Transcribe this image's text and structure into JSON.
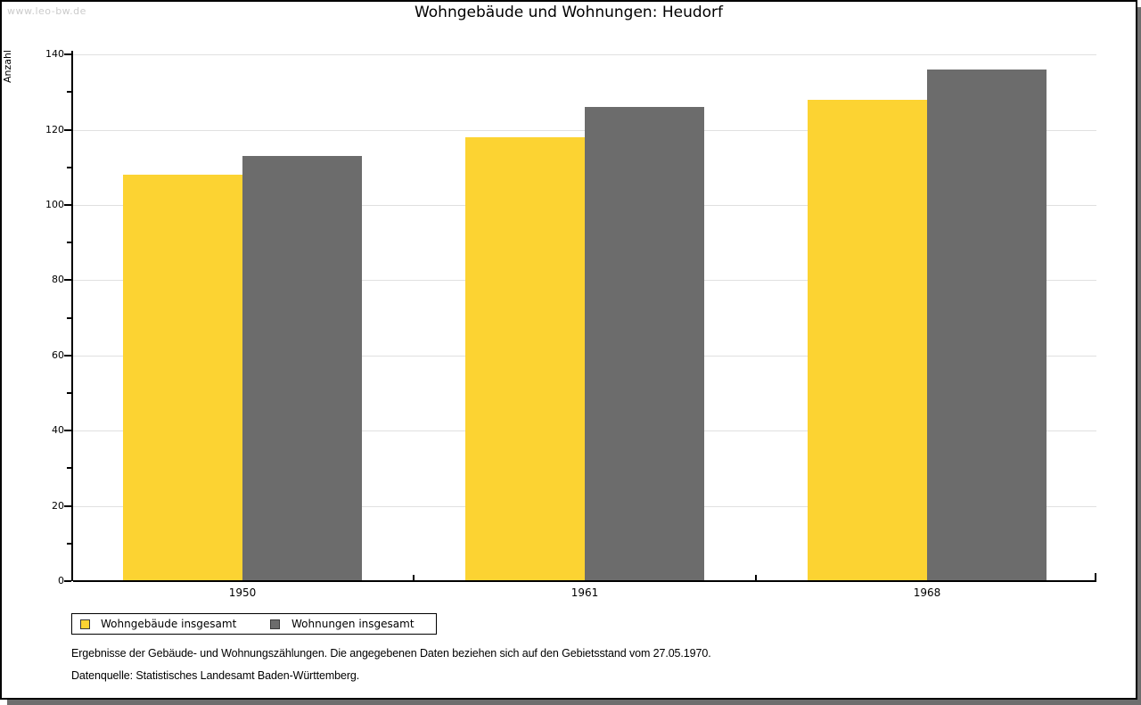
{
  "watermark": "www.leo-bw.de",
  "title": "Wohngebäude und Wohnungen: Heudorf",
  "chart_data": {
    "type": "bar",
    "title": "Wohngebäude und Wohnungen: Heudorf",
    "categories": [
      "1950",
      "1961",
      "1968"
    ],
    "series": [
      {
        "name": "Wohngebäude insgesamt",
        "color": "#fcd332",
        "values": [
          108,
          118,
          128
        ]
      },
      {
        "name": "Wohnungen insgesamt",
        "color": "#6c6c6c",
        "values": [
          113,
          126,
          136
        ]
      }
    ],
    "xlabel": "",
    "ylabel": "Anzahl",
    "ylim": [
      0,
      140
    ],
    "ytick_step": 20,
    "ytick_minor_step": 10,
    "grid": true,
    "gridline_color": "#e0e0e0",
    "axis_color": "#000000",
    "legend_position": "bottom"
  },
  "footer": {
    "line1": "Ergebnisse der Gebäude- und Wohnungszählungen. Die angegebenen Daten beziehen sich auf den Gebietsstand vom 27.05.1970.",
    "line2": "Datenquelle: Statistisches Landesamt Baden-Württemberg."
  }
}
